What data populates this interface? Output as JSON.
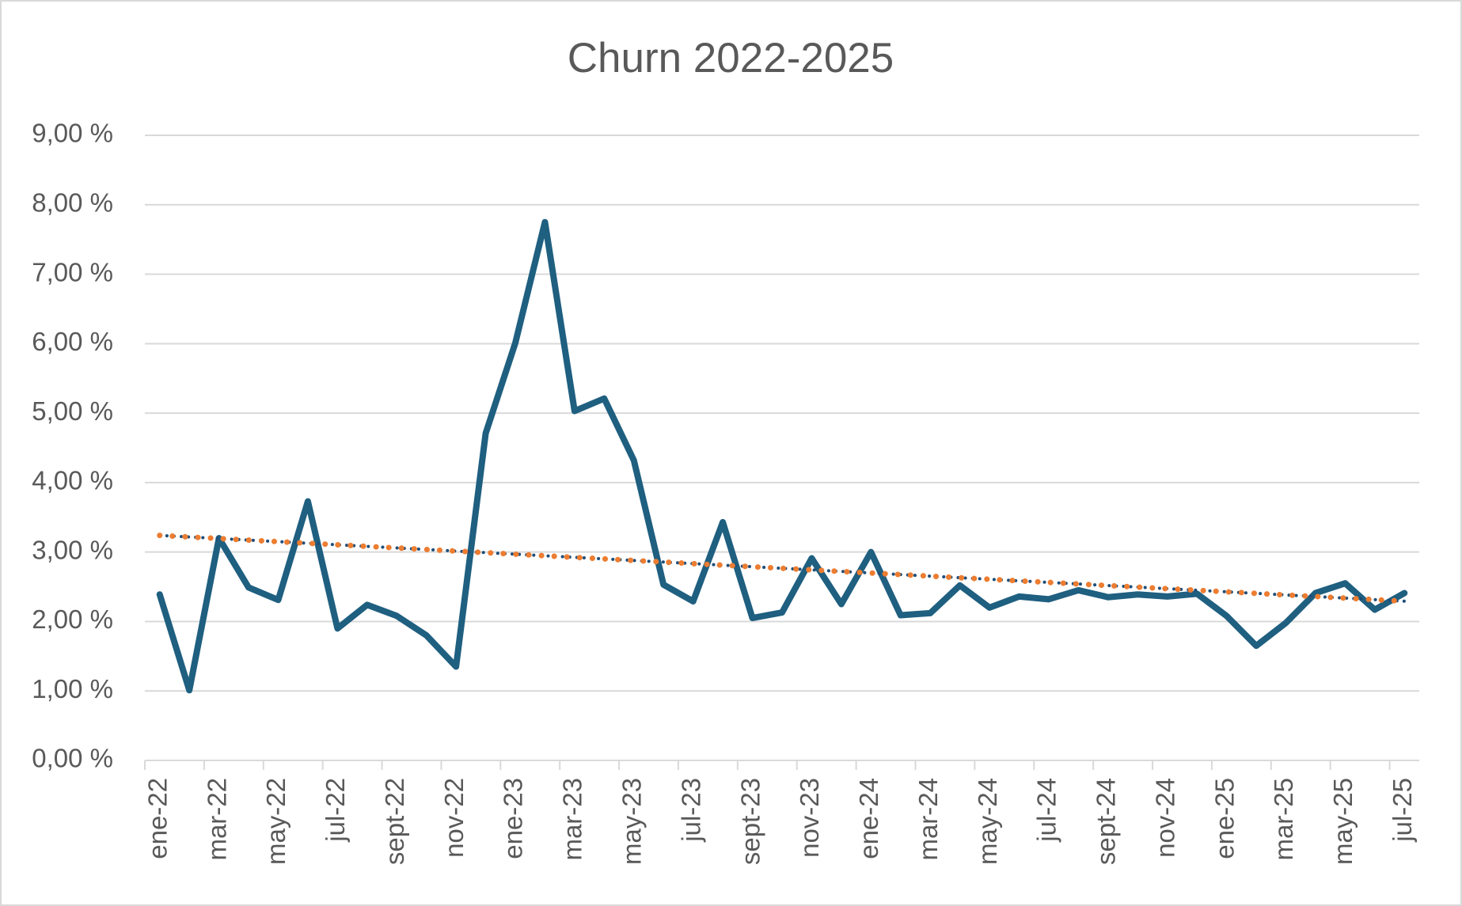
{
  "chart_data": {
    "type": "line",
    "title": "Churn 2022-2025",
    "categories": [
      "ene-22",
      null,
      "mar-22",
      null,
      "may-22",
      null,
      "jul-22",
      null,
      "sept-22",
      null,
      "nov-22",
      null,
      "ene-23",
      null,
      "mar-23",
      null,
      "may-23",
      null,
      "jul-23",
      null,
      "sept-23",
      null,
      "nov-23",
      null,
      "ene-24",
      null,
      "mar-24",
      null,
      "may-24",
      null,
      "jul-24",
      null,
      "sept-24",
      null,
      "nov-24",
      null,
      "ene-25",
      null,
      "mar-25",
      null,
      "may-25",
      null,
      "jul-25"
    ],
    "values": [
      2.39,
      1.01,
      3.2,
      2.49,
      2.31,
      3.73,
      1.9,
      2.24,
      2.08,
      1.8,
      1.35,
      4.71,
      6.01,
      7.75,
      5.03,
      5.21,
      4.32,
      2.53,
      2.29,
      3.43,
      2.05,
      2.13,
      2.91,
      2.25,
      3.0,
      2.09,
      2.12,
      2.52,
      2.2,
      2.36,
      2.32,
      2.45,
      2.35,
      2.39,
      2.36,
      2.4,
      2.08,
      1.65,
      1.98,
      2.41,
      2.55,
      2.17,
      2.41
    ],
    "color": "#1f5f80",
    "trendlines": [
      {
        "type": "linear",
        "color": "#1f4e79",
        "style": "dotted"
      },
      {
        "type": "linear",
        "color": "#ed7d31",
        "style": "dotted"
      }
    ],
    "ylim": [
      0,
      9
    ],
    "yticks": [
      {
        "value": 0,
        "label": "0,00 %"
      },
      {
        "value": 1,
        "label": "1,00 %"
      },
      {
        "value": 2,
        "label": "2,00 %"
      },
      {
        "value": 3,
        "label": "3,00 %"
      },
      {
        "value": 4,
        "label": "4,00 %"
      },
      {
        "value": 5,
        "label": "5,00 %"
      },
      {
        "value": 6,
        "label": "6,00 %"
      },
      {
        "value": 7,
        "label": "7,00 %"
      },
      {
        "value": 8,
        "label": "8,00 %"
      },
      {
        "value": 9,
        "label": "9,00 %"
      }
    ],
    "grid": true
  }
}
